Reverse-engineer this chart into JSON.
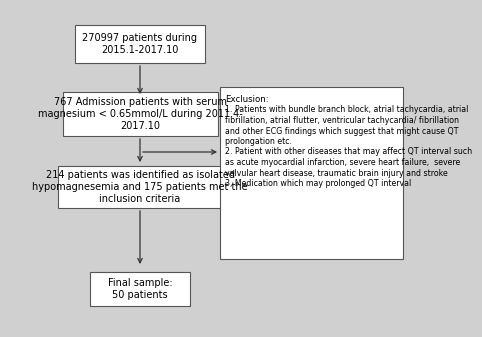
{
  "background_color": "#d0d0d0",
  "box_color": "#ffffff",
  "box_edge_color": "#555555",
  "arrow_color": "#333333",
  "box1_text": "270997 patients during\n2015.1-2017.10",
  "box2_text": "767 Admission patients with serum\nmagnesium < 0.65mmol/L during 2011.4-\n2017.10",
  "box3_text": "214 patients was identified as isolated\nhypomagnesemia and 175 patients met the\ninclusion criteria",
  "box4_text": "Final sample:\n50 patients",
  "exclusion_title": "Exclusion:",
  "exclusion_lines": [
    "1. Patients with bundle branch block, atrial tachycardia, atrial",
    "fibrillation, atrial flutter, ventricular tachycardia/ fibrillation",
    "and other ECG findings which suggest that might cause QT",
    "prolongation etc.",
    "2. Patient with other diseases that may affect QT interval such",
    "as acute myocardial infarction, severe heart failure,  severe",
    "valvular heart disease, traumatic brain injury and stroke",
    "3, Medication which may prolonged QT interval"
  ],
  "font_size": 7.0,
  "exclusion_font_size": 6.2
}
